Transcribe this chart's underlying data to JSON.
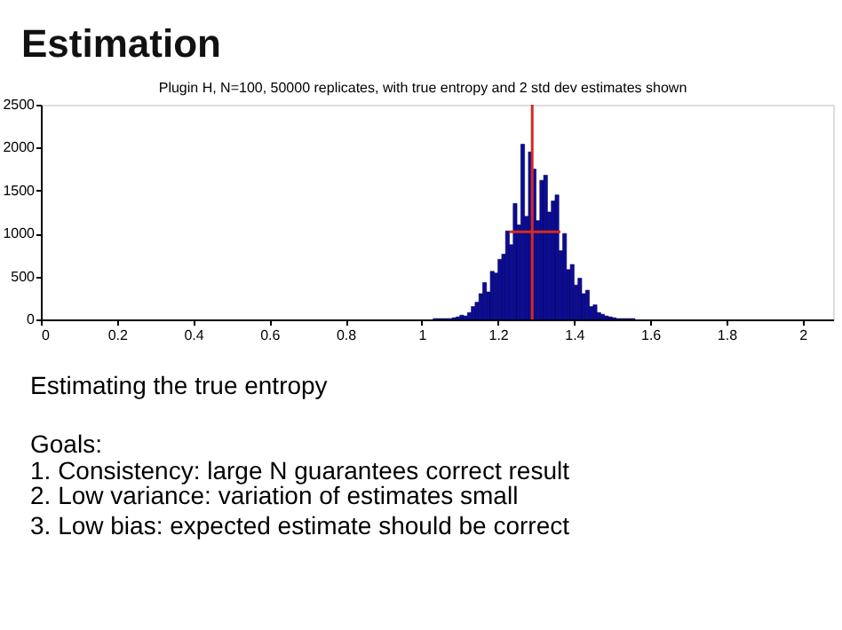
{
  "chart_data": {
    "type": "histogram",
    "title": "Estimation",
    "subtitle": "Plugin H, N=100, 50000 replicates, with true entropy and 2 std dev estimates shown",
    "bins": [
      1.03,
      1.04,
      1.05,
      1.06,
      1.07,
      1.08,
      1.09,
      1.1,
      1.11,
      1.12,
      1.13,
      1.14,
      1.15,
      1.16,
      1.17,
      1.18,
      1.19,
      1.2,
      1.21,
      1.22,
      1.23,
      1.24,
      1.25,
      1.26,
      1.27,
      1.28,
      1.29,
      1.3,
      1.31,
      1.32,
      1.33,
      1.34,
      1.35,
      1.36,
      1.37,
      1.38,
      1.39,
      1.4,
      1.41,
      1.42,
      1.43,
      1.44,
      1.45,
      1.46,
      1.47,
      1.48,
      1.49,
      1.5,
      1.51,
      1.52,
      1.53,
      1.54,
      1.55,
      1.56
    ],
    "values": [
      10,
      10,
      10,
      10,
      10,
      20,
      30,
      50,
      40,
      80,
      150,
      200,
      300,
      430,
      320,
      560,
      540,
      700,
      760,
      1030,
      870,
      1350,
      1100,
      2040,
      1200,
      1950,
      1750,
      1150,
      1620,
      1680,
      1250,
      1380,
      1450,
      800,
      1000,
      580,
      640,
      400,
      480,
      300,
      340,
      150,
      170,
      80,
      60,
      40,
      30,
      20,
      10,
      10,
      10,
      10,
      10
    ],
    "color": "#0c0c96",
    "series": [
      {
        "type": "line",
        "x": [
          1.23,
          1.364
        ],
        "values": [
          1020,
          1020
        ],
        "color": "#d42a1e"
      }
    ],
    "ref_lines": [
      {
        "axis": "x",
        "value": 1.29,
        "color": "#d42a1e"
      }
    ],
    "xlim": [
      0,
      2.08
    ],
    "xticks": [
      0,
      0.2,
      0.4,
      0.6,
      0.8,
      1,
      1.2,
      1.4,
      1.6,
      1.8,
      2
    ],
    "ylim": [
      0,
      2500
    ],
    "yticks": [
      0,
      500,
      1000,
      1500,
      2000,
      2500
    ],
    "grid": false,
    "annotations": [
      "Estimating the true entropy",
      "Goals:",
      "1. Consistency: large N guarantees correct result",
      "2. Low variance: variation of estimates small",
      "3. Low bias: expected estimate should be correct"
    ]
  }
}
